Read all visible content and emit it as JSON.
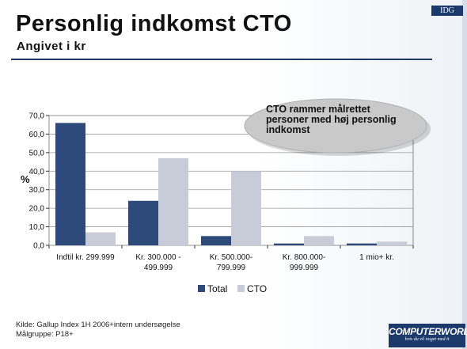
{
  "header": {
    "title": "Personlig indkomst CTO",
    "subtitle": "Angivet i kr",
    "idg_logo": "IDG"
  },
  "callout": {
    "lines": [
      "CTO rammer målrettet",
      "personer med høj personlig",
      "indkomst"
    ]
  },
  "footer": {
    "source": "Kilde: Gallup Index 1H 2006+intern undersøgelse",
    "audience": "Målgruppe: P18+"
  },
  "brand": {
    "name": "COMPUTERWORLD",
    "tagline": "hvis du vil noget med it"
  },
  "chart_data": {
    "type": "bar",
    "ylabel": "%",
    "ylim": [
      0,
      70
    ],
    "yticks": [
      "0,0",
      "10,0",
      "20,0",
      "30,0",
      "40,0",
      "50,0",
      "60,0",
      "70,0"
    ],
    "categories": [
      [
        "Indtil kr. 299.999"
      ],
      [
        "Kr. 300.000 -",
        "499.999"
      ],
      [
        "Kr. 500.000-",
        "799.999"
      ],
      [
        "Kr. 800.000-",
        "999.999"
      ],
      [
        "1 mio+ kr."
      ]
    ],
    "series": [
      {
        "name": "Total",
        "color": "#2e4a7a",
        "values": [
          66,
          24,
          5,
          1,
          1
        ]
      },
      {
        "name": "CTO",
        "color": "#c8ccd8",
        "values": [
          7,
          47,
          40,
          5,
          2
        ]
      }
    ],
    "grid": true,
    "legend": "bottom"
  }
}
